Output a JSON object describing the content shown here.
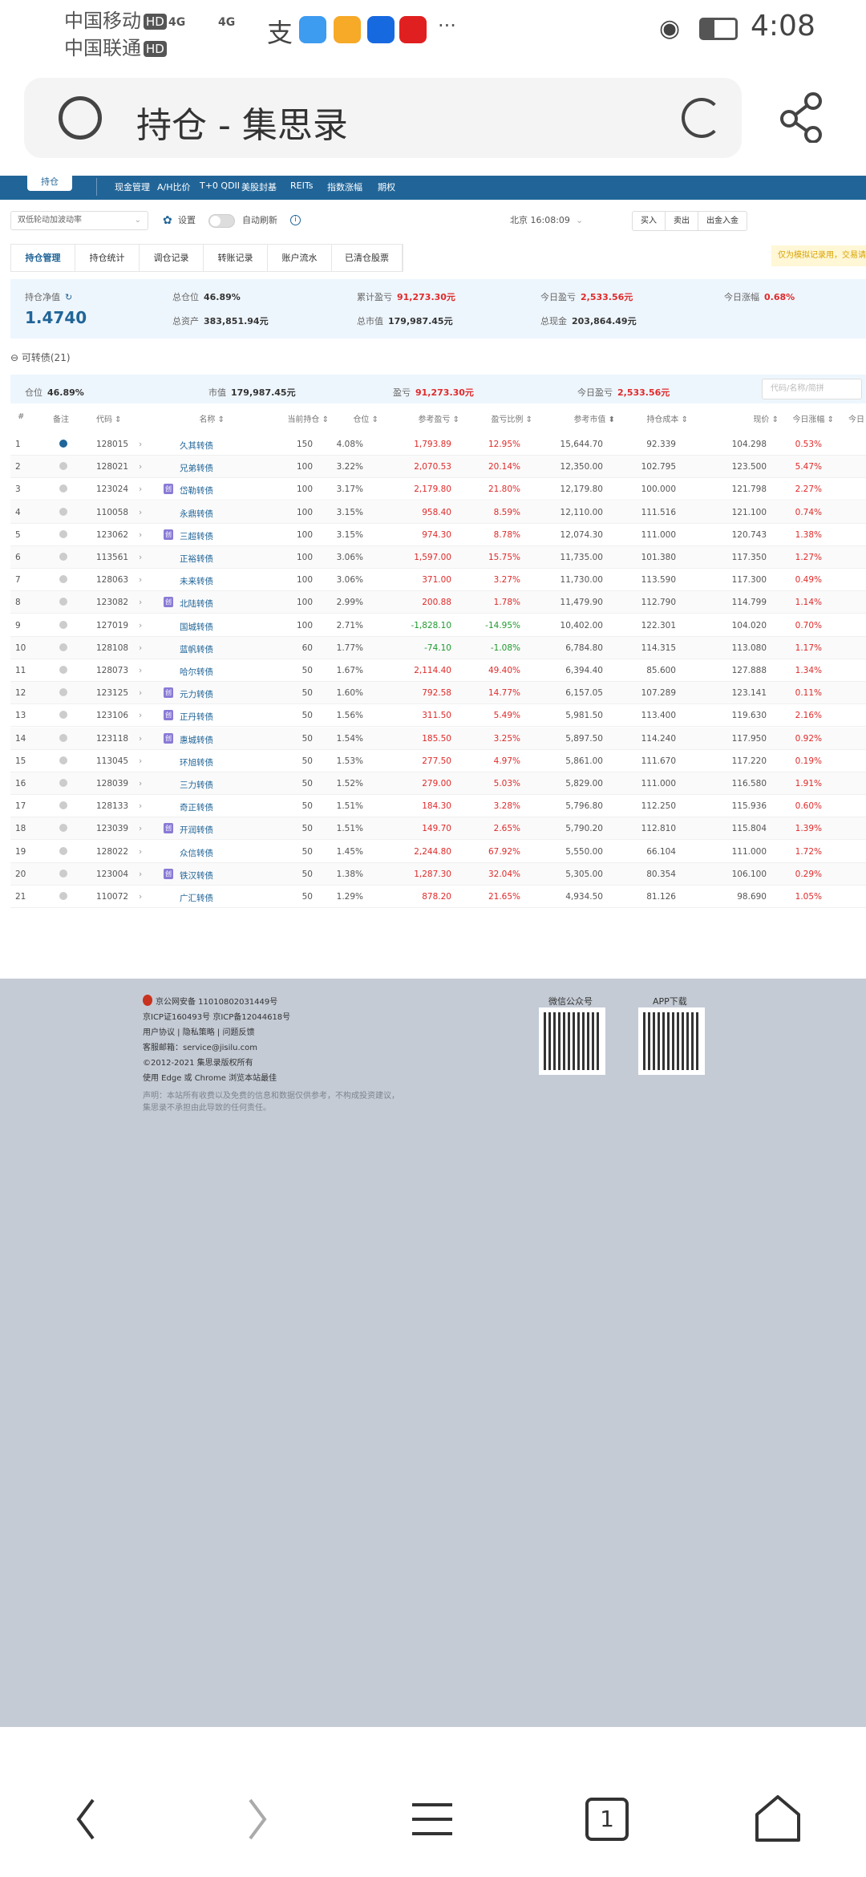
{
  "status_bar": {
    "carrier1": "中国移动",
    "carrier2": "中国联通",
    "hd": "HD",
    "network": "4G",
    "time": "4:08",
    "icons": [
      "signal-icon",
      "alipay-icon",
      "message-icon",
      "cup-app-icon",
      "bulb-app-icon",
      "stock-app-icon",
      "more-icon",
      "eye-icon",
      "battery-icon"
    ]
  },
  "browser": {
    "title": "持仓 - 集思录"
  },
  "site_nav": {
    "logo_tab": "持仓",
    "items": [
      "现金管理",
      "A/H比价",
      "T+0 QDII",
      "美股封基",
      "REITs",
      "指数涨幅",
      "期权"
    ]
  },
  "toolbar": {
    "strategy_select": "双低轮动加波动率",
    "settings": "设置",
    "auto_refresh": "自动刷新",
    "auto_refresh_on": false,
    "time": "北京 16:08:09",
    "buttons": [
      "买入",
      "卖出",
      "出金入金"
    ]
  },
  "tabs": {
    "items": [
      "持仓管理",
      "持仓统计",
      "调仓记录",
      "转账记录",
      "账户流水",
      "已清仓股票"
    ],
    "active": 0
  },
  "notice": "仅为模拟记录用，交易请",
  "summary": {
    "nav_label": "持仓净值",
    "nav_value": "1.4740",
    "total_position_label": "总仓位",
    "total_position": "46.89%",
    "total_assets_label": "总资产",
    "total_assets": "383,851.94元",
    "cum_pnl_label": "累计盈亏",
    "cum_pnl": "91,273.30元",
    "total_mv_label": "总市值",
    "total_mv": "179,987.45元",
    "today_pnl_label": "今日盈亏",
    "today_pnl": "2,533.56元",
    "total_cash_label": "总现金",
    "total_cash": "203,864.49元",
    "today_change_label": "今日涨幅",
    "today_change": "0.68%"
  },
  "section": {
    "title": "可转债(21)",
    "position_label": "仓位",
    "position": "46.89%",
    "mv_label": "市值",
    "mv": "179,987.45元",
    "pnl_label": "盈亏",
    "pnl": "91,273.30元",
    "today_pnl_label": "今日盈亏",
    "today_pnl": "2,533.56元",
    "search_placeholder": "代码/名称/简拼"
  },
  "table": {
    "headers": [
      "#",
      "备注",
      "代码",
      "名称",
      "当前持仓",
      "仓位",
      "参考盈亏",
      "盈亏比例",
      "参考市值",
      "持仓成本",
      "现价",
      "今日涨幅",
      "今日"
    ],
    "sorted_column": "参考市值",
    "badge_label": "创",
    "rows": [
      [
        "1",
        "128015",
        "久其转债",
        false,
        "150",
        "4.08%",
        "1,793.89",
        "12.95%",
        "15,644.70",
        "92.339",
        "104.298",
        "0.53%"
      ],
      [
        "2",
        "128021",
        "兄弟转债",
        false,
        "100",
        "3.22%",
        "2,070.53",
        "20.14%",
        "12,350.00",
        "102.795",
        "123.500",
        "5.47%"
      ],
      [
        "3",
        "123024",
        "岱勒转债",
        true,
        "100",
        "3.17%",
        "2,179.80",
        "21.80%",
        "12,179.80",
        "100.000",
        "121.798",
        "2.27%"
      ],
      [
        "4",
        "110058",
        "永鼎转债",
        false,
        "100",
        "3.15%",
        "958.40",
        "8.59%",
        "12,110.00",
        "111.516",
        "121.100",
        "0.74%"
      ],
      [
        "5",
        "123062",
        "三超转债",
        true,
        "100",
        "3.15%",
        "974.30",
        "8.78%",
        "12,074.30",
        "111.000",
        "120.743",
        "1.38%"
      ],
      [
        "6",
        "113561",
        "正裕转债",
        false,
        "100",
        "3.06%",
        "1,597.00",
        "15.75%",
        "11,735.00",
        "101.380",
        "117.350",
        "1.27%"
      ],
      [
        "7",
        "128063",
        "未来转债",
        false,
        "100",
        "3.06%",
        "371.00",
        "3.27%",
        "11,730.00",
        "113.590",
        "117.300",
        "0.49%"
      ],
      [
        "8",
        "123082",
        "北陆转债",
        true,
        "100",
        "2.99%",
        "200.88",
        "1.78%",
        "11,479.90",
        "112.790",
        "114.799",
        "1.14%"
      ],
      [
        "9",
        "127019",
        "国城转债",
        false,
        "100",
        "2.71%",
        "-1,828.10",
        "-14.95%",
        "10,402.00",
        "122.301",
        "104.020",
        "0.70%"
      ],
      [
        "10",
        "128108",
        "蓝帆转债",
        false,
        "60",
        "1.77%",
        "-74.10",
        "-1.08%",
        "6,784.80",
        "114.315",
        "113.080",
        "1.17%"
      ],
      [
        "11",
        "128073",
        "哈尔转债",
        false,
        "50",
        "1.67%",
        "2,114.40",
        "49.40%",
        "6,394.40",
        "85.600",
        "127.888",
        "1.34%"
      ],
      [
        "12",
        "123125",
        "元力转债",
        true,
        "50",
        "1.60%",
        "792.58",
        "14.77%",
        "6,157.05",
        "107.289",
        "123.141",
        "0.11%"
      ],
      [
        "13",
        "123106",
        "正丹转债",
        true,
        "50",
        "1.56%",
        "311.50",
        "5.49%",
        "5,981.50",
        "113.400",
        "119.630",
        "2.16%"
      ],
      [
        "14",
        "123118",
        "惠城转债",
        true,
        "50",
        "1.54%",
        "185.50",
        "3.25%",
        "5,897.50",
        "114.240",
        "117.950",
        "0.92%"
      ],
      [
        "15",
        "113045",
        "环旭转债",
        false,
        "50",
        "1.53%",
        "277.50",
        "4.97%",
        "5,861.00",
        "111.670",
        "117.220",
        "0.19%"
      ],
      [
        "16",
        "128039",
        "三力转债",
        false,
        "50",
        "1.52%",
        "279.00",
        "5.03%",
        "5,829.00",
        "111.000",
        "116.580",
        "1.91%"
      ],
      [
        "17",
        "128133",
        "奇正转债",
        false,
        "50",
        "1.51%",
        "184.30",
        "3.28%",
        "5,796.80",
        "112.250",
        "115.936",
        "0.60%"
      ],
      [
        "18",
        "123039",
        "开润转债",
        true,
        "50",
        "1.51%",
        "149.70",
        "2.65%",
        "5,790.20",
        "112.810",
        "115.804",
        "1.39%"
      ],
      [
        "19",
        "128022",
        "众信转债",
        false,
        "50",
        "1.45%",
        "2,244.80",
        "67.92%",
        "5,550.00",
        "66.104",
        "111.000",
        "1.72%"
      ],
      [
        "20",
        "123004",
        "铁汉转债",
        true,
        "50",
        "1.38%",
        "1,287.30",
        "32.04%",
        "5,305.00",
        "80.354",
        "106.100",
        "0.29%"
      ],
      [
        "21",
        "110072",
        "广汇转债",
        false,
        "50",
        "1.29%",
        "878.20",
        "21.65%",
        "4,934.50",
        "81.126",
        "98.690",
        "1.05%"
      ]
    ]
  },
  "footer": {
    "lines": [
      "京公网安备 11010802031449号",
      "京ICP证160493号 京ICP备12044618号",
      "用户协议 | 隐私策略 | 问题反馈",
      "客服邮箱：service@jisilu.com",
      "©2012-2021 集思录版权所有",
      "使用 Edge 或 Chrome 浏览本站最佳"
    ],
    "disclaimer": [
      "声明：本站所有收费以及免费的信息和数据仅供参考，不构成投资建议，",
      "集思录不承担由此导致的任何责任。"
    ],
    "wechat_label": "微信公众号",
    "app_label": "APP下载"
  },
  "bottom_nav": {
    "tab_count": "1"
  },
  "colors": {
    "nav_blue": "#216598",
    "positive": "#e02a2a",
    "negative": "#1f9a2f",
    "footer_bg": "#c4cbd5"
  }
}
